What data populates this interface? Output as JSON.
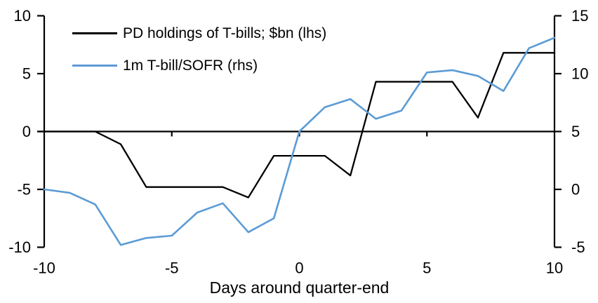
{
  "colors": {
    "series1": "#000000",
    "series2": "#5B9BD5",
    "axis": "#000000",
    "text": "#000000",
    "background": "#ffffff"
  },
  "legend": {
    "series1_label": "PD holdings of T-bills; $bn (lhs)",
    "series2_label": "1m T-bill/SOFR (rhs)"
  },
  "chart_data": {
    "type": "line",
    "title": "",
    "xlabel": "Days around quarter-end",
    "grid": false,
    "legend_position": "top-left",
    "x": [
      -10,
      -9,
      -8,
      -7,
      -6,
      -5,
      -4,
      -3,
      -2,
      -1,
      0,
      1,
      2,
      3,
      4,
      5,
      6,
      7,
      8,
      9,
      10
    ],
    "series": [
      {
        "name": "PD holdings of T-bills; $bn (lhs)",
        "axis": "left",
        "color": "#000000",
        "values": [
          0,
          0,
          0,
          -1.1,
          -4.8,
          -4.8,
          -4.8,
          -4.8,
          -5.7,
          -2.1,
          -2.1,
          -2.1,
          -3.8,
          4.3,
          4.3,
          4.3,
          4.3,
          1.2,
          6.8,
          6.8,
          6.8
        ]
      },
      {
        "name": "1m T-bill/SOFR (rhs)",
        "axis": "right",
        "color": "#5B9BD5",
        "values": [
          0,
          -0.3,
          -1.3,
          -4.8,
          -4.2,
          -4.0,
          -2.0,
          -1.2,
          -3.7,
          -2.5,
          5.0,
          7.1,
          7.8,
          6.1,
          6.8,
          10.1,
          10.3,
          9.8,
          8.5,
          12.2,
          13.1
        ]
      }
    ],
    "left_axis": {
      "min": -10,
      "max": 10,
      "ticks": [
        10,
        5,
        0,
        -5,
        -10
      ],
      "tick_labels": [
        "10",
        "5",
        "0",
        "-5",
        "-10"
      ]
    },
    "right_axis": {
      "min": -5,
      "max": 15,
      "ticks": [
        15,
        10,
        5,
        0,
        -5
      ],
      "tick_labels": [
        "15",
        "10",
        "5",
        "0",
        "-5"
      ]
    },
    "x_axis": {
      "ticks": [
        -10,
        -5,
        0,
        5,
        10
      ],
      "tick_labels": [
        "-10",
        "-5",
        "0",
        "5",
        "10"
      ],
      "zero_line_small_ticks": [
        -5,
        0,
        5
      ]
    }
  }
}
